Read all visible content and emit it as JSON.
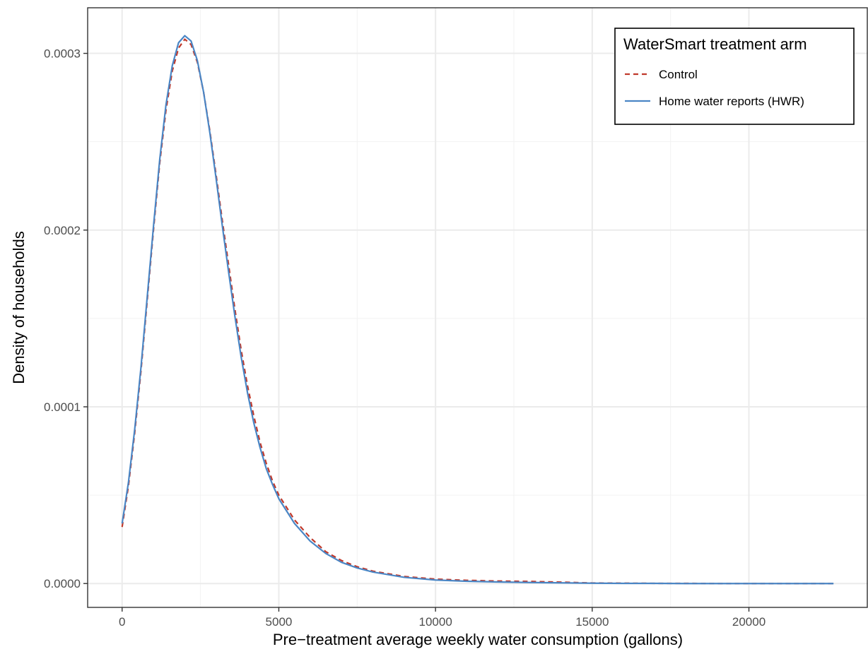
{
  "chart_data": {
    "type": "line",
    "title": "",
    "xlabel": "Pre−treatment average weekly water consumption (gallons)",
    "ylabel": "Density of households",
    "xlim": [
      -1100,
      23800
    ],
    "ylim": [
      -1.35e-05,
      0.0003258
    ],
    "x_ticks": [
      0,
      5000,
      10000,
      15000,
      20000
    ],
    "x_tick_labels": [
      "0",
      "5000",
      "10000",
      "15000",
      "20000"
    ],
    "y_ticks": [
      0,
      0.0001,
      0.0002,
      0.0003
    ],
    "y_tick_labels": [
      "0.0000",
      "0.0001",
      "0.0002",
      "0.0003"
    ],
    "grid": true,
    "legend": {
      "title": "WaterSmart treatment arm",
      "position": "top-right"
    },
    "series": [
      {
        "name": "Control",
        "style": "dashed",
        "color": "#c0392b",
        "x": [
          0,
          200,
          400,
          600,
          800,
          1000,
          1200,
          1400,
          1600,
          1800,
          2000,
          2200,
          2400,
          2600,
          2800,
          3000,
          3200,
          3400,
          3600,
          3800,
          4000,
          4200,
          4400,
          4600,
          4800,
          5000,
          5500,
          6000,
          6500,
          7000,
          7500,
          8000,
          9000,
          10000,
          11000,
          12000,
          13000,
          14000,
          15000,
          16000,
          17000,
          18000,
          19000,
          20000,
          21000,
          22000,
          22700
        ],
        "y": [
          3.2e-05,
          5.5e-05,
          8.5e-05,
          0.00012,
          0.00016,
          0.0002,
          0.000238,
          0.000268,
          0.00029,
          0.000303,
          0.000308,
          0.000305,
          0.000295,
          0.000278,
          0.000256,
          0.000231,
          0.000205,
          0.00018,
          0.000155,
          0.000132,
          0.000112,
          9.5e-05,
          8e-05,
          6.8e-05,
          5.8e-05,
          5e-05,
          3.6e-05,
          2.6e-05,
          1.8e-05,
          1.3e-05,
          9.5e-06,
          7e-06,
          4e-06,
          2.5e-06,
          1.8e-06,
          1.4e-06,
          1.2e-06,
          8e-07,
          3e-07,
          2e-07,
          1e-07,
          1e-07,
          0.0,
          0.0,
          0.0,
          0.0,
          0.0
        ]
      },
      {
        "name": "Home water reports (HWR)",
        "style": "solid",
        "color": "#4a86c5",
        "x": [
          0,
          200,
          400,
          600,
          800,
          1000,
          1200,
          1400,
          1600,
          1800,
          2000,
          2200,
          2400,
          2600,
          2800,
          3000,
          3200,
          3400,
          3600,
          3800,
          4000,
          4200,
          4400,
          4600,
          4800,
          5000,
          5500,
          6000,
          6500,
          7000,
          7500,
          8000,
          9000,
          10000,
          11000,
          12000,
          13000,
          14000,
          15000,
          16000,
          17000,
          18000,
          19000,
          20000,
          21000,
          22000,
          22700
        ],
        "y": [
          3.4e-05,
          5.7e-05,
          8.7e-05,
          0.000122,
          0.000162,
          0.000202,
          0.00024,
          0.000271,
          0.000293,
          0.000306,
          0.00031,
          0.000307,
          0.000296,
          0.000278,
          0.000255,
          0.000229,
          0.000202,
          0.000176,
          0.000151,
          0.000128,
          0.000108,
          9.1e-05,
          7.7e-05,
          6.5e-05,
          5.6e-05,
          4.8e-05,
          3.4e-05,
          2.4e-05,
          1.7e-05,
          1.2e-05,
          8.8e-06,
          6.5e-06,
          3.5e-06,
          2e-06,
          1.3e-06,
          9e-07,
          6e-07,
          4e-07,
          2e-07,
          1e-07,
          1e-07,
          0.0,
          0.0,
          0.0,
          0.0,
          0.0,
          0.0
        ]
      }
    ]
  }
}
